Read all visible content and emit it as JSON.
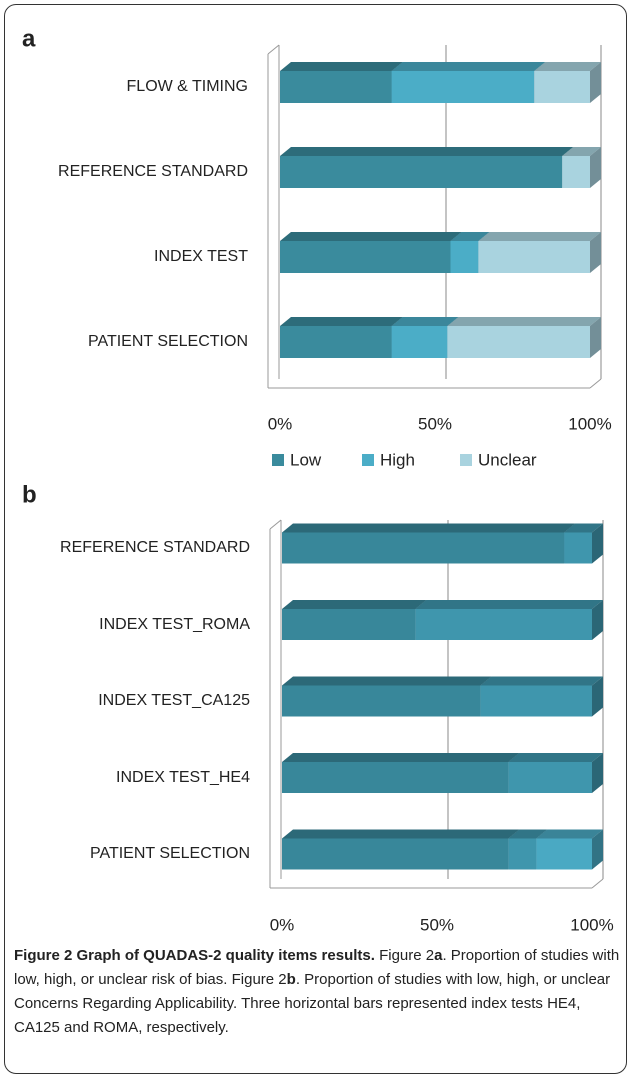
{
  "chart_data": [
    {
      "type": "bar",
      "label": "a",
      "categories": [
        "FLOW & TIMING",
        "REFERENCE STANDARD",
        "INDEX TEST",
        "PATIENT SELECTION"
      ],
      "series": [
        {
          "name": "Low",
          "color": "#3a8b9d",
          "values": [
            36,
            91,
            55,
            36
          ]
        },
        {
          "name": "High",
          "color": "#4badc7",
          "values": [
            46,
            0,
            9,
            18
          ]
        },
        {
          "name": "Unclear",
          "color": "#a9d3df",
          "values": [
            18,
            9,
            36,
            46
          ]
        }
      ],
      "xlim": [
        0,
        100
      ],
      "xticks": [
        {
          "value": 0,
          "label": "0%"
        },
        {
          "value": 50,
          "label": "50%"
        },
        {
          "value": 100,
          "label": "100%"
        }
      ],
      "grid": true,
      "stacked": true,
      "legend": "bottom"
    },
    {
      "type": "bar",
      "label": "b",
      "categories": [
        "REFERENCE STANDARD",
        "INDEX TEST_ROMA",
        "INDEX TEST_CA125",
        "INDEX TEST_HE4",
        "PATIENT SELECTION"
      ],
      "series": [
        {
          "color": "#38879a",
          "values": [
            91,
            43,
            64,
            73,
            73
          ]
        },
        {
          "color": "#3f96ad",
          "values": [
            9,
            57,
            36,
            27,
            9
          ]
        },
        {
          "color": "#4aa9c3",
          "values": [
            0,
            0,
            0,
            0,
            18
          ]
        }
      ],
      "xlim": [
        0,
        100
      ],
      "xticks": [
        {
          "value": 0,
          "label": "0%"
        },
        {
          "value": 50,
          "label": "50%"
        },
        {
          "value": 100,
          "label": "100%"
        }
      ],
      "grid": true,
      "stacked": true
    }
  ],
  "caption": {
    "title": "Figure 2 Graph of QUADAS-2 quality items results.",
    "text1": " Figure 2",
    "label_a": "a",
    "text2": ". Proportion of studies with low, high, or unclear risk of bias. Figure 2",
    "label_b": "b",
    "text3": ". Proportion of studies with low, high, or unclear Concerns Regarding Applicability. Three horizontal bars represented index tests HE4, CA125 and ROMA, respectively."
  }
}
